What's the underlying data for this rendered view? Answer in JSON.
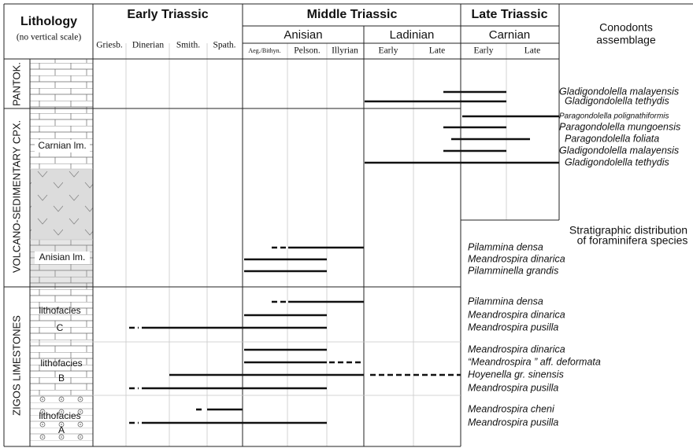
{
  "header": {
    "lithology": "Lithology",
    "scale_note": "(no vertical scale)",
    "periods": [
      "Early Triassic",
      "Middle Triassic",
      "Late Triassic"
    ],
    "stages": [
      "Anisian",
      "Ladinian",
      "Carnian"
    ],
    "substages": [
      "Griesb.",
      "Dinerian",
      "Smith.",
      "Spath.",
      "Aeg./Bithyn.",
      "Pelson.",
      "Illyrian",
      "Early",
      "Late",
      "Early",
      "Late"
    ],
    "conodonts_title": [
      "Conodonts",
      "assemblage"
    ],
    "foraminifera_title": [
      "Stratigraphic distribution",
      "of foraminifera species"
    ]
  },
  "units": [
    "PANTOK.",
    "VOLCANO-SEDIMENTARY CPX.",
    "ZIGOS LIMESTONES"
  ],
  "lithology_labels": [
    "Carnian lm.",
    "Anisian lm.",
    "lithofacies",
    "C",
    "lithofacies",
    "B",
    "lithofacies",
    "A"
  ],
  "conodonts": [
    "Gladigondolella malayensis",
    "Gladigondolella tethydis",
    "Paragondolella polignathiformis",
    "Paragondolella mungoensis",
    "Paragondolella foliata",
    "Gladigondolella malayensis",
    "Gladigondolella tethydis"
  ],
  "foraminifera": [
    "Pilammina densa",
    "Meandrospira dinarica",
    "Pilamminella grandis",
    "Pilammina densa",
    "Meandrospira dinarica",
    "Meandrospira pusilla",
    "Meandrospira dinarica",
    "“Meandrospira ” aff. deformata",
    "Hoyenella gr. sinensis",
    "Meandrospira pusilla",
    "Meandrospira cheni",
    "Meandrospira pusilla"
  ]
}
